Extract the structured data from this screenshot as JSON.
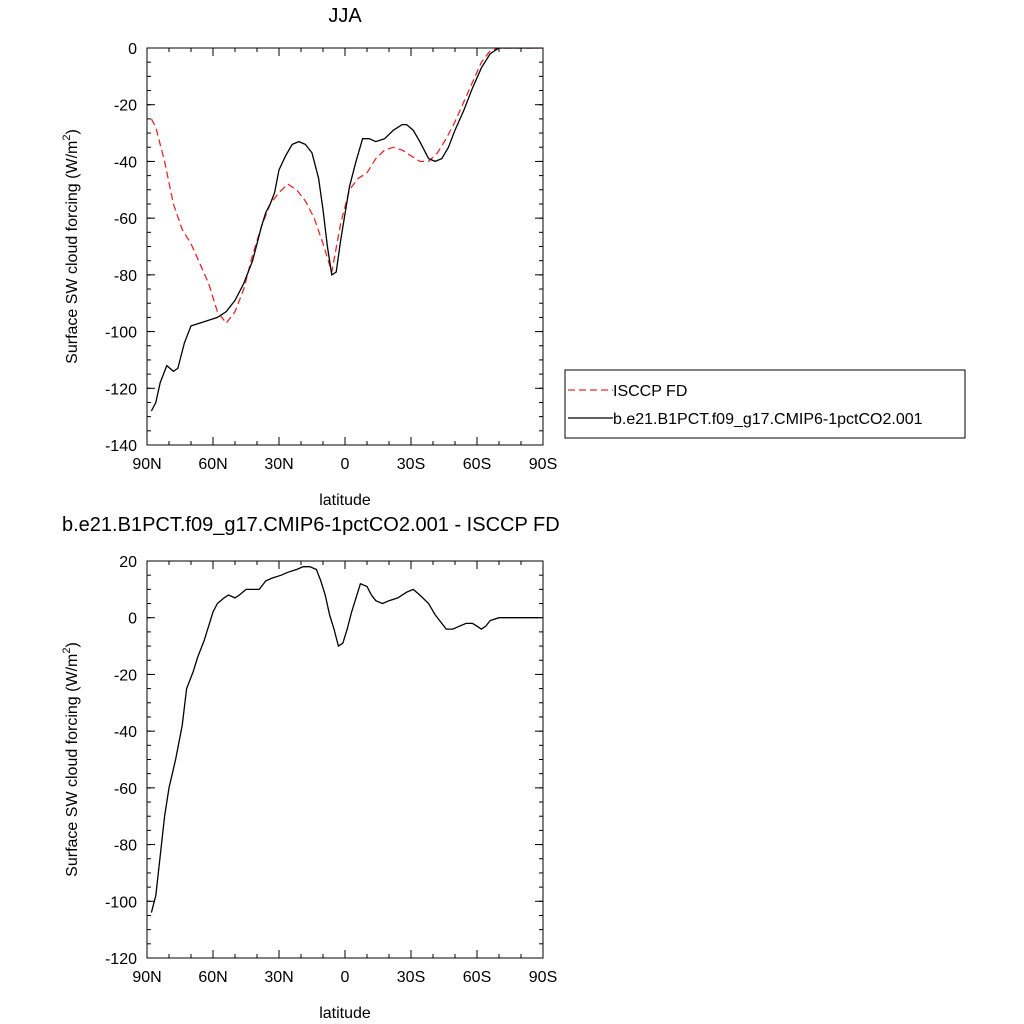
{
  "chart_data": [
    {
      "type": "line",
      "title": "JJA",
      "xlabel": "latitude",
      "ylabel": "Surface SW cloud forcing (W/m",
      "ylabel_sup": "2",
      "ylabel_tail": ")",
      "xlim": [
        90,
        -90
      ],
      "ylim": [
        -140,
        0
      ],
      "x_ticks": [
        90,
        60,
        30,
        0,
        -30,
        -60,
        -90
      ],
      "x_tick_labels": [
        "90N",
        "60N",
        "30N",
        "0",
        "30S",
        "60S",
        "90S"
      ],
      "y_ticks": [
        0,
        -20,
        -40,
        -60,
        -80,
        -100,
        -120,
        -140
      ],
      "y_tick_labels": [
        "0",
        "-20",
        "-40",
        "-60",
        "-80",
        "-100",
        "-120",
        "-140"
      ],
      "legend_position": "right",
      "series": [
        {
          "name": "ISCCP FD",
          "color": "#e8262b",
          "dash": "dashed",
          "points": [
            [
              88,
              -25
            ],
            [
              86,
              -28
            ],
            [
              82,
              -40
            ],
            [
              78,
              -55
            ],
            [
              74,
              -64
            ],
            [
              70,
              -69
            ],
            [
              66,
              -76
            ],
            [
              62,
              -83
            ],
            [
              58,
              -93
            ],
            [
              54,
              -97
            ],
            [
              50,
              -93
            ],
            [
              46,
              -85
            ],
            [
              42,
              -73
            ],
            [
              38,
              -63
            ],
            [
              34,
              -55
            ],
            [
              30,
              -51
            ],
            [
              26,
              -48
            ],
            [
              22,
              -50
            ],
            [
              18,
              -54
            ],
            [
              14,
              -60
            ],
            [
              10,
              -69
            ],
            [
              6,
              -79
            ],
            [
              2,
              -62
            ],
            [
              -2,
              -50
            ],
            [
              -6,
              -46
            ],
            [
              -10,
              -44
            ],
            [
              -14,
              -39
            ],
            [
              -18,
              -36
            ],
            [
              -22,
              -35
            ],
            [
              -26,
              -36
            ],
            [
              -30,
              -38
            ],
            [
              -34,
              -40
            ],
            [
              -38,
              -40
            ],
            [
              -42,
              -37
            ],
            [
              -46,
              -32
            ],
            [
              -50,
              -26
            ],
            [
              -54,
              -19
            ],
            [
              -58,
              -12
            ],
            [
              -62,
              -5
            ],
            [
              -66,
              -1
            ],
            [
              -70,
              0
            ],
            [
              -74,
              0
            ],
            [
              -80,
              0
            ],
            [
              -90,
              0
            ]
          ]
        },
        {
          "name": "b.e21.B1PCT.f09_g17.CMIP6-1pctCO2.001",
          "color": "#000000",
          "dash": "solid",
          "points": [
            [
              88,
              -128
            ],
            [
              86,
              -125
            ],
            [
              84,
              -118
            ],
            [
              81,
              -112
            ],
            [
              78,
              -114
            ],
            [
              76,
              -113
            ],
            [
              73,
              -104
            ],
            [
              70,
              -98
            ],
            [
              66,
              -97
            ],
            [
              62,
              -96
            ],
            [
              58,
              -95
            ],
            [
              54,
              -93
            ],
            [
              50,
              -89
            ],
            [
              46,
              -83
            ],
            [
              42,
              -75
            ],
            [
              38,
              -63
            ],
            [
              36,
              -58
            ],
            [
              34,
              -55
            ],
            [
              32,
              -51
            ],
            [
              30,
              -43
            ],
            [
              27,
              -38
            ],
            [
              24,
              -34
            ],
            [
              21,
              -33
            ],
            [
              18,
              -34
            ],
            [
              15,
              -37
            ],
            [
              12,
              -46
            ],
            [
              10,
              -57
            ],
            [
              8,
              -70
            ],
            [
              6,
              -80
            ],
            [
              4,
              -79
            ],
            [
              2,
              -68
            ],
            [
              -2,
              -49
            ],
            [
              -5,
              -40
            ],
            [
              -8,
              -32
            ],
            [
              -11,
              -32
            ],
            [
              -14,
              -33
            ],
            [
              -18,
              -32
            ],
            [
              -22,
              -29
            ],
            [
              -26,
              -27
            ],
            [
              -28,
              -27
            ],
            [
              -31,
              -29
            ],
            [
              -34,
              -33
            ],
            [
              -38,
              -39
            ],
            [
              -41,
              -40
            ],
            [
              -44,
              -39
            ],
            [
              -47,
              -35
            ],
            [
              -50,
              -29
            ],
            [
              -54,
              -22
            ],
            [
              -58,
              -14
            ],
            [
              -62,
              -7
            ],
            [
              -66,
              -2
            ],
            [
              -70,
              0
            ],
            [
              -76,
              0
            ],
            [
              -82,
              0
            ],
            [
              -88,
              0
            ]
          ]
        }
      ]
    },
    {
      "type": "line",
      "title": "b.e21.B1PCT.f09_g17.CMIP6-1pctCO2.001 - ISCCP FD",
      "xlabel": "latitude",
      "ylabel": "Surface SW cloud forcing (W/m",
      "ylabel_sup": "2",
      "ylabel_tail": ")",
      "xlim": [
        90,
        -90
      ],
      "ylim": [
        -120,
        20
      ],
      "x_ticks": [
        90,
        60,
        30,
        0,
        -30,
        -60,
        -90
      ],
      "x_tick_labels": [
        "90N",
        "60N",
        "30N",
        "0",
        "30S",
        "60S",
        "90S"
      ],
      "y_ticks": [
        20,
        0,
        -20,
        -40,
        -60,
        -80,
        -100,
        -120
      ],
      "y_tick_labels": [
        "20",
        "0",
        "-20",
        "-40",
        "-60",
        "-80",
        "-100",
        "-120"
      ],
      "series": [
        {
          "name": "",
          "color": "#000000",
          "dash": "solid",
          "points": [
            [
              88,
              -104
            ],
            [
              86,
              -98
            ],
            [
              84,
              -84
            ],
            [
              82,
              -70
            ],
            [
              80,
              -60
            ],
            [
              77,
              -50
            ],
            [
              74,
              -38
            ],
            [
              72,
              -25
            ],
            [
              69,
              -19
            ],
            [
              67,
              -14
            ],
            [
              64,
              -8
            ],
            [
              62,
              -3
            ],
            [
              60,
              2
            ],
            [
              58,
              5
            ],
            [
              55,
              7
            ],
            [
              53,
              8
            ],
            [
              50,
              7
            ],
            [
              48,
              8
            ],
            [
              45,
              10
            ],
            [
              42,
              10
            ],
            [
              39,
              10
            ],
            [
              36,
              13
            ],
            [
              33,
              14
            ],
            [
              29,
              15
            ],
            [
              26,
              16
            ],
            [
              22,
              17
            ],
            [
              19,
              18
            ],
            [
              16,
              18
            ],
            [
              13,
              17
            ],
            [
              11,
              13
            ],
            [
              9,
              8
            ],
            [
              7,
              1
            ],
            [
              5,
              -4
            ],
            [
              3,
              -10
            ],
            [
              1,
              -9
            ],
            [
              -1,
              -4
            ],
            [
              -3,
              2
            ],
            [
              -5,
              7
            ],
            [
              -7,
              12
            ],
            [
              -10,
              11
            ],
            [
              -12,
              8
            ],
            [
              -14,
              6
            ],
            [
              -17,
              5
            ],
            [
              -20,
              6
            ],
            [
              -24,
              7
            ],
            [
              -28,
              9
            ],
            [
              -31,
              10
            ],
            [
              -34,
              8
            ],
            [
              -38,
              5
            ],
            [
              -41,
              1
            ],
            [
              -44,
              -2
            ],
            [
              -46,
              -4
            ],
            [
              -49,
              -4
            ],
            [
              -52,
              -3
            ],
            [
              -55,
              -2
            ],
            [
              -58,
              -2
            ],
            [
              -60,
              -3
            ],
            [
              -62,
              -4
            ],
            [
              -64,
              -3
            ],
            [
              -66,
              -1
            ],
            [
              -70,
              0
            ],
            [
              -76,
              0
            ],
            [
              -82,
              0
            ],
            [
              -88,
              0
            ]
          ]
        }
      ]
    }
  ]
}
